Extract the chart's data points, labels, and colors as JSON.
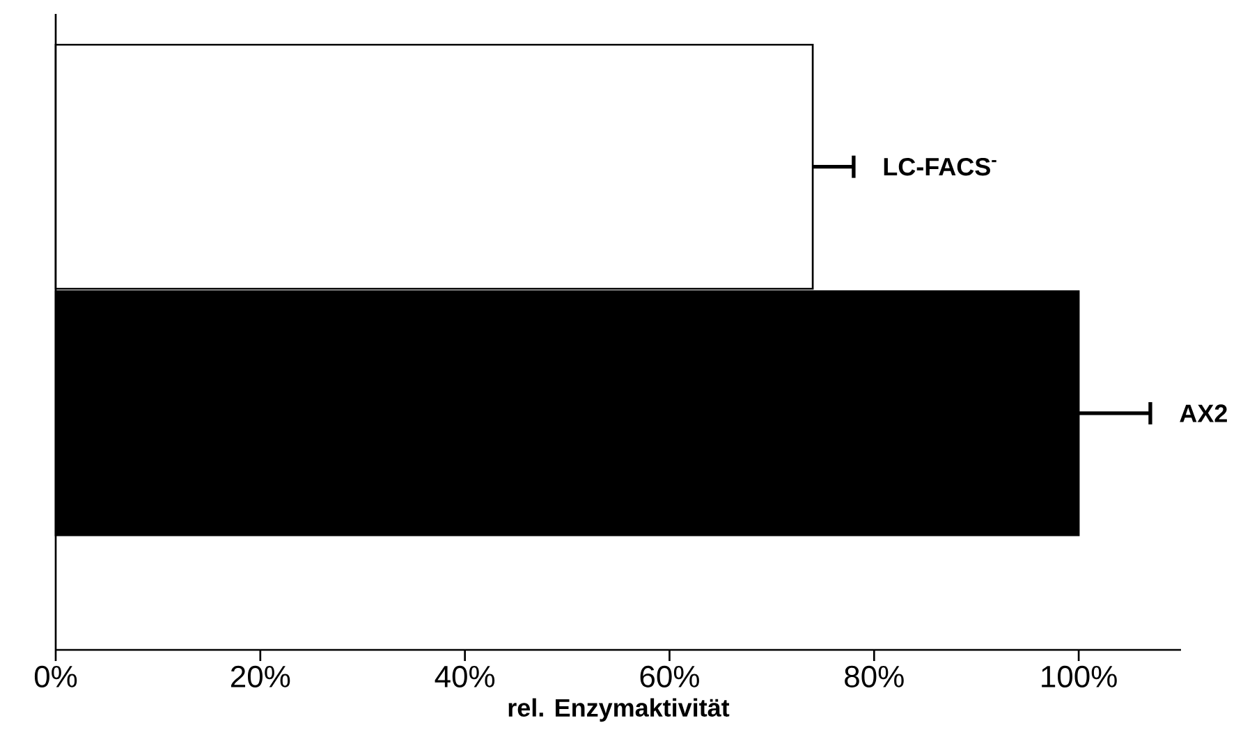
{
  "chart_data": {
    "type": "bar",
    "orientation": "horizontal",
    "xlabel": "rel. Enzymaktivität",
    "categories": [
      "LC-FACS$^{-}$",
      "AX2"
    ],
    "values": [
      74,
      100
    ],
    "colors": [
      "#ffffff",
      "#000000"
    ],
    "errors": [
      [
        74,
        78
      ],
      [
        100,
        107
      ]
    ],
    "xlim": [
      0,
      110
    ],
    "xticks": [
      {
        "value": 0,
        "label": "0%"
      },
      {
        "value": 20,
        "label": "20%"
      },
      {
        "value": 40,
        "label": "40%"
      },
      {
        "value": 60,
        "label": "60%"
      },
      {
        "value": 80,
        "label": "80%"
      },
      {
        "value": 100,
        "label": "100%"
      }
    ],
    "tick_labels": "x",
    "grid": false
  }
}
